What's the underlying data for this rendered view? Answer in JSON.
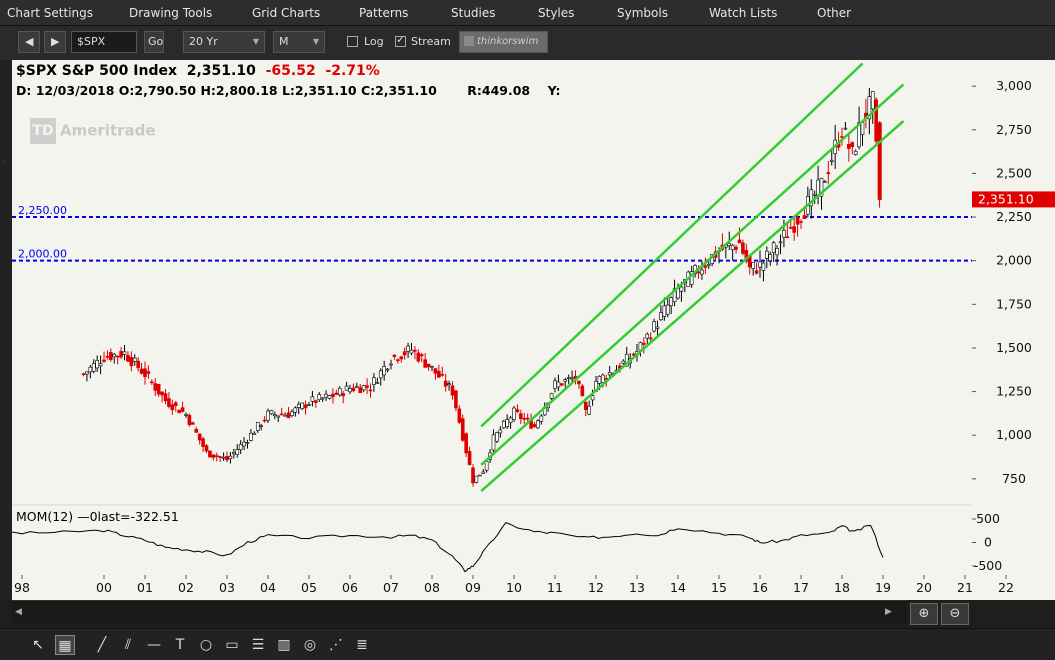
{
  "menu": {
    "items": [
      "Chart Settings",
      "Drawing Tools",
      "Grid Charts",
      "Patterns",
      "Studies",
      "Styles",
      "Symbols",
      "Watch Lists",
      "Other"
    ]
  },
  "toolbar": {
    "symbol_value": "$SPX",
    "go_label": "Go",
    "period_value": "20 Yr",
    "interval_value": "M",
    "log_label": "Log",
    "log_checked": false,
    "stream_label": "Stream",
    "stream_checked": true,
    "brand_label": "thinkorswim"
  },
  "header": {
    "title": "$SPX S&P 500 Index",
    "last": "2,351.10",
    "change": "-65.52",
    "change_pct": "-2.71%",
    "ohlc_line": "D: 12/03/2018  O:2,790.50  H:2,800.18  L:2,351.10  C:2,351.10",
    "range": "R:449.08",
    "y_label": "Y:"
  },
  "watermark": {
    "logo_letters": "TD",
    "text": "Ameritrade"
  },
  "study": {
    "label": "MOM(12)",
    "last_text": "0last=-322.51"
  },
  "colors": {
    "chart_bg": "#f4f4ef",
    "channel": "#33cc33",
    "support": "#0000ee",
    "up_candle": "#ffffff",
    "down_candle": "#dd0000",
    "last_price_tag": "#e00000"
  },
  "drawing_tools": [
    "cursor-icon",
    "crosshair-icon",
    "pencil-icon",
    "parallel-lines-icon",
    "horizontal-line-icon",
    "text-icon",
    "ellipse-icon",
    "rectangle-icon",
    "fibonacci-icon",
    "gann-icon",
    "price-channel-icon",
    "fan-icon",
    "grid-lines-icon"
  ],
  "chart_data": [
    {
      "type": "candlestick",
      "title": "$SPX S&P 500 Index",
      "xlabel": "",
      "ylabel": "",
      "x_ticks": [
        "98",
        "00",
        "01",
        "02",
        "03",
        "04",
        "05",
        "06",
        "07",
        "08",
        "09",
        "10",
        "11",
        "12",
        "13",
        "14",
        "15",
        "16",
        "17",
        "18",
        "19",
        "20",
        "21",
        "22"
      ],
      "y_ticks": [
        "3,000",
        "2,750",
        "2,500",
        "2,250",
        "2,000",
        "1,750",
        "1,500",
        "1,250",
        "1,000",
        "750"
      ],
      "ylim": [
        600,
        3150
      ],
      "grid": false,
      "last_price": 2351.1,
      "last_price_label": "2,351.10",
      "series": [
        {
          "name": "",
          "x": [
            1999.5,
            2000.0,
            2000.5,
            2001.0,
            2001.5,
            2002.0,
            2002.5,
            2003.0,
            2003.5,
            2004.0,
            2004.5,
            2005.0,
            2005.5,
            2006.0,
            2006.5,
            2007.0,
            2007.5,
            2008.0,
            2008.5,
            2009.0,
            2009.25,
            2009.5,
            2010.0,
            2010.5,
            2011.0,
            2011.5,
            2011.75,
            2012.0,
            2012.5,
            2013.0,
            2013.5,
            2014.0,
            2014.5,
            2015.0,
            2015.5,
            2015.75,
            2016.0,
            2016.5,
            2017.0,
            2017.5,
            2018.0,
            2018.25,
            2018.5,
            2018.75,
            2018.92
          ],
          "values": [
            1350,
            1450,
            1470,
            1350,
            1200,
            1120,
            900,
            860,
            980,
            1120,
            1120,
            1190,
            1220,
            1270,
            1280,
            1440,
            1490,
            1380,
            1250,
            740,
            800,
            980,
            1130,
            1050,
            1290,
            1330,
            1130,
            1310,
            1380,
            1480,
            1650,
            1830,
            1950,
            2060,
            2100,
            1950,
            1970,
            2110,
            2270,
            2430,
            2760,
            2600,
            2820,
            2900,
            2351
          ]
        }
      ],
      "support_lines": [
        {
          "value": 2250,
          "label": "2,250.00"
        },
        {
          "value": 2000,
          "label": "2,000.00"
        }
      ],
      "channel_lines": [
        {
          "name": "upper",
          "x": [
            2009.2,
            2018.5
          ],
          "values": [
            1050,
            3130
          ]
        },
        {
          "name": "middle",
          "x": [
            2009.2,
            2019.5
          ],
          "values": [
            830,
            3010
          ]
        },
        {
          "name": "lower",
          "x": [
            2009.2,
            2019.5
          ],
          "values": [
            680,
            2800
          ]
        }
      ]
    },
    {
      "type": "line",
      "title": "MOM(12)",
      "xlabel": "",
      "ylabel": "",
      "y_ticks": [
        "500",
        "0",
        "-500"
      ],
      "ylim": [
        -650,
        650
      ],
      "series": [
        {
          "name": "MOM(12)",
          "x": [
            1997.0,
            1998.0,
            1999.0,
            2000.0,
            2000.5,
            2001.0,
            2001.5,
            2002.0,
            2002.5,
            2003.0,
            2003.5,
            2004.0,
            2005.0,
            2006.0,
            2007.0,
            2007.5,
            2008.0,
            2008.5,
            2008.8,
            2009.0,
            2009.3,
            2009.8,
            2010.5,
            2011.0,
            2011.7,
            2012.3,
            2013.0,
            2013.5,
            2014.0,
            2015.0,
            2015.7,
            2016.0,
            2016.5,
            2017.0,
            2017.7,
            2018.0,
            2018.3,
            2018.7,
            2019.0
          ],
          "values": [
            250,
            200,
            220,
            260,
            150,
            50,
            -100,
            -150,
            -200,
            -280,
            0,
            150,
            100,
            150,
            120,
            150,
            50,
            -300,
            -600,
            -500,
            -150,
            400,
            230,
            200,
            100,
            120,
            200,
            150,
            320,
            200,
            120,
            0,
            30,
            150,
            200,
            350,
            220,
            380,
            -320
          ]
        }
      ]
    }
  ]
}
